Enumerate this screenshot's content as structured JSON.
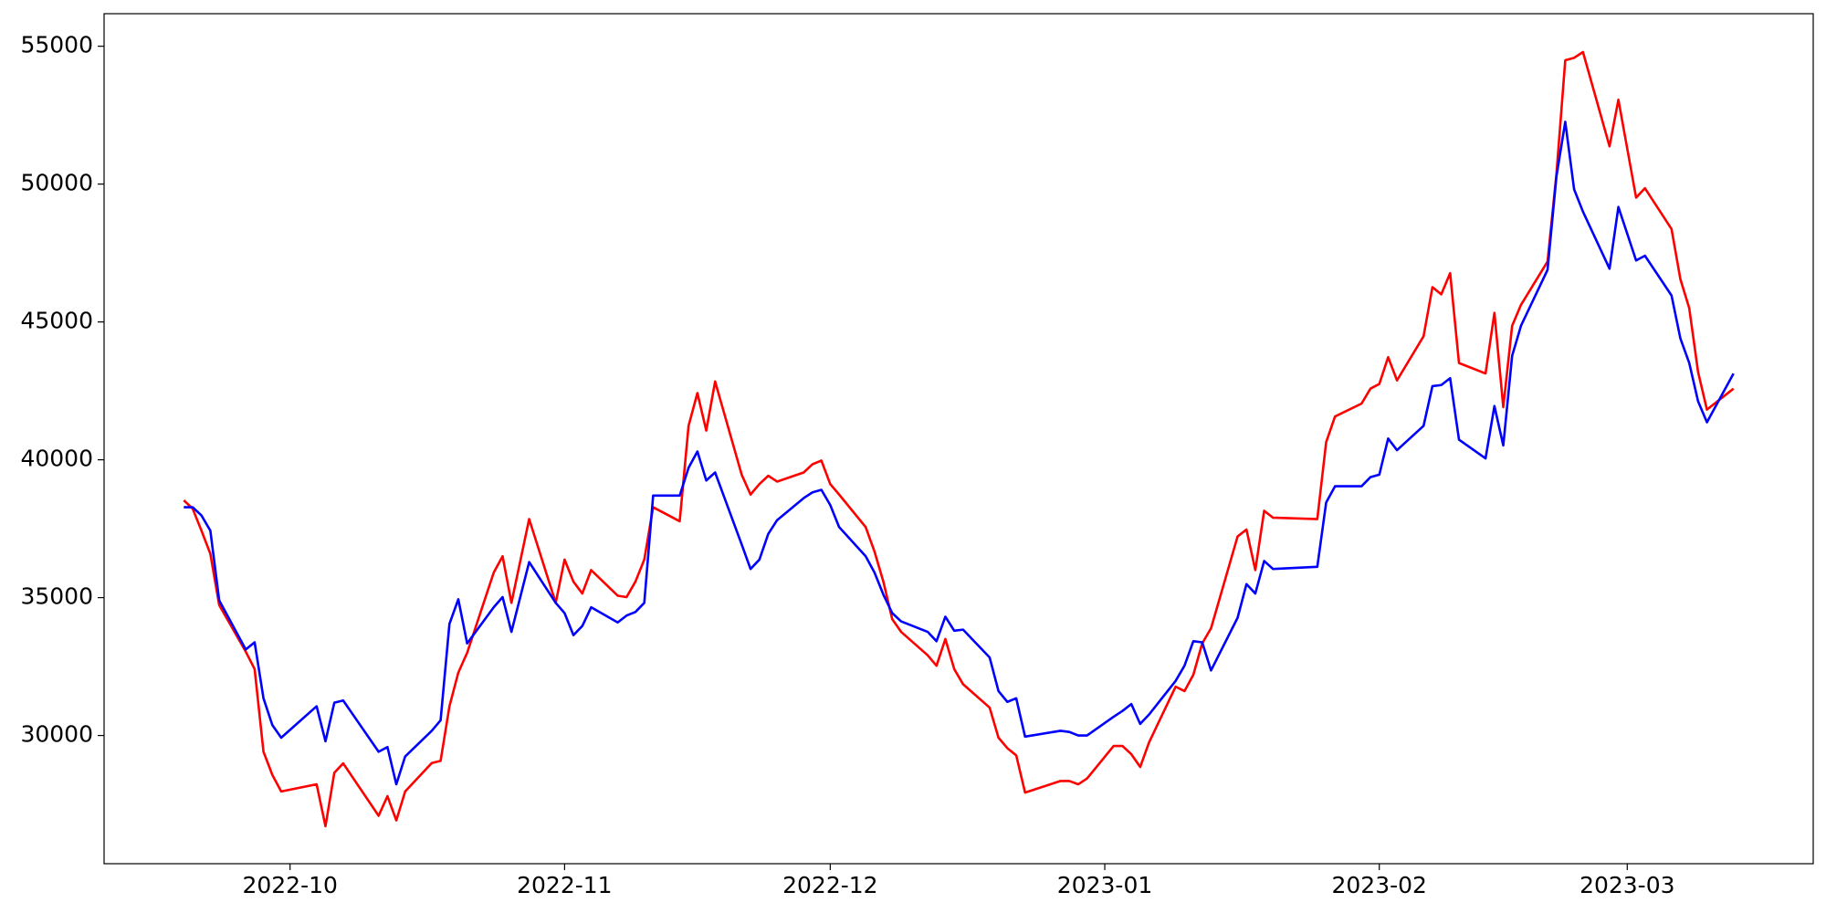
{
  "chart_data": {
    "type": "line",
    "x": [
      "2022-09-19",
      "2022-09-20",
      "2022-09-21",
      "2022-09-22",
      "2022-09-23",
      "2022-09-26",
      "2022-09-27",
      "2022-09-28",
      "2022-09-29",
      "2022-09-30",
      "2022-10-04",
      "2022-10-05",
      "2022-10-06",
      "2022-10-07",
      "2022-10-11",
      "2022-10-12",
      "2022-10-13",
      "2022-10-14",
      "2022-10-17",
      "2022-10-18",
      "2022-10-19",
      "2022-10-20",
      "2022-10-21",
      "2022-10-24",
      "2022-10-25",
      "2022-10-26",
      "2022-10-28",
      "2022-10-31",
      "2022-11-01",
      "2022-11-02",
      "2022-11-03",
      "2022-11-04",
      "2022-11-07",
      "2022-11-08",
      "2022-11-09",
      "2022-11-10",
      "2022-11-11",
      "2022-11-14",
      "2022-11-15",
      "2022-11-16",
      "2022-11-17",
      "2022-11-18",
      "2022-11-21",
      "2022-11-22",
      "2022-11-23",
      "2022-11-24",
      "2022-11-25",
      "2022-11-28",
      "2022-11-29",
      "2022-11-30",
      "2022-12-01",
      "2022-12-02",
      "2022-12-05",
      "2022-12-06",
      "2022-12-07",
      "2022-12-08",
      "2022-12-09",
      "2022-12-12",
      "2022-12-13",
      "2022-12-14",
      "2022-12-15",
      "2022-12-16",
      "2022-12-19",
      "2022-12-20",
      "2022-12-21",
      "2022-12-22",
      "2022-12-23",
      "2022-12-27",
      "2022-12-28",
      "2022-12-29",
      "2022-12-30",
      "2023-01-02",
      "2023-01-03",
      "2023-01-04",
      "2023-01-05",
      "2023-01-06",
      "2023-01-09",
      "2023-01-10",
      "2023-01-11",
      "2023-01-12",
      "2023-01-13",
      "2023-01-16",
      "2023-01-17",
      "2023-01-18",
      "2023-01-19",
      "2023-01-20",
      "2023-01-25",
      "2023-01-26",
      "2023-01-27",
      "2023-01-30",
      "2023-01-31",
      "2023-02-01",
      "2023-02-02",
      "2023-02-03",
      "2023-02-06",
      "2023-02-07",
      "2023-02-08",
      "2023-02-09",
      "2023-02-10",
      "2023-02-13",
      "2023-02-14",
      "2023-02-15",
      "2023-02-16",
      "2023-02-17",
      "2023-02-20",
      "2023-02-21",
      "2023-02-22",
      "2023-02-23",
      "2023-02-24",
      "2023-02-27",
      "2023-02-28",
      "2023-03-02",
      "2023-03-03",
      "2023-03-06",
      "2023-03-07",
      "2023-03-08",
      "2023-03-09",
      "2023-03-10",
      "2023-03-13"
    ],
    "series": [
      {
        "color": "red",
        "values": [
          38530,
          38230,
          37430,
          36590,
          34730,
          33040,
          32410,
          29410,
          28570,
          27970,
          28230,
          26710,
          28650,
          28990,
          27090,
          27800,
          26920,
          27970,
          29000,
          29080,
          31060,
          32280,
          33000,
          35910,
          36500,
          34810,
          37850,
          34810,
          36380,
          35580,
          35150,
          36000,
          35070,
          35020,
          35580,
          36380,
          38280,
          37770,
          41230,
          42420,
          41060,
          42840,
          39460,
          38740,
          39120,
          39420,
          39210,
          39540,
          39840,
          39970,
          39120,
          38740,
          37560,
          36670,
          35580,
          34220,
          33760,
          32910,
          32530,
          33500,
          32410,
          31860,
          31010,
          29920,
          29540,
          29280,
          27930,
          28350,
          28350,
          28230,
          28440,
          29620,
          29620,
          29320,
          28860,
          29750,
          31770,
          31610,
          32200,
          33340,
          33890,
          37220,
          37470,
          36000,
          38150,
          37900,
          37850,
          40640,
          41570,
          42040,
          42580,
          42750,
          43720,
          42880,
          44480,
          46260,
          46000,
          46770,
          43510,
          43130,
          45330,
          41910,
          44860,
          45620,
          47190,
          50350,
          54490,
          54580,
          54790,
          51370,
          53060,
          49510,
          49850,
          48370,
          46550,
          45500,
          43180,
          41820,
          42580
        ]
      },
      {
        "color": "blue",
        "values": [
          38280,
          38280,
          37980,
          37430,
          34900,
          33120,
          33380,
          31350,
          30380,
          29920,
          31060,
          29790,
          31190,
          31270,
          29410,
          29580,
          28230,
          29240,
          30170,
          30550,
          34050,
          34940,
          33340,
          34650,
          35020,
          33760,
          36290,
          34810,
          34440,
          33640,
          33970,
          34650,
          34100,
          34350,
          34480,
          34810,
          38700,
          38700,
          39710,
          40300,
          39250,
          39540,
          36930,
          36040,
          36380,
          37310,
          37810,
          38610,
          38820,
          38910,
          38360,
          37560,
          36500,
          35910,
          35110,
          34440,
          34140,
          33760,
          33420,
          34310,
          33800,
          33840,
          32830,
          31610,
          31220,
          31350,
          29960,
          30170,
          30130,
          30000,
          30000,
          30680,
          30890,
          31140,
          30420,
          30760,
          31980,
          32530,
          33420,
          33380,
          32360,
          34270,
          35490,
          35150,
          36330,
          36040,
          36120,
          38450,
          39040,
          39040,
          39370,
          39460,
          40770,
          40350,
          41230,
          42670,
          42710,
          42960,
          40730,
          40050,
          41950,
          40520,
          43770,
          44860,
          46890,
          50270,
          52260,
          49810,
          49000,
          46930,
          49170,
          47230,
          47400,
          45960,
          44400,
          43510,
          42120,
          41360,
          43130
        ]
      }
    ],
    "xlim": [
      "2022-09-10",
      "2023-03-22"
    ],
    "xticks": [
      {
        "value": "2022-10-01",
        "label": "2022-10"
      },
      {
        "value": "2022-11-01",
        "label": "2022-11"
      },
      {
        "value": "2022-12-01",
        "label": "2022-12"
      },
      {
        "value": "2023-01-01",
        "label": "2023-01"
      },
      {
        "value": "2023-02-01",
        "label": "2023-02"
      },
      {
        "value": "2023-03-01",
        "label": "2023-03"
      }
    ],
    "ylim": [
      25350,
      56180
    ],
    "yticks": [
      30000,
      35000,
      40000,
      45000,
      50000,
      55000
    ]
  }
}
